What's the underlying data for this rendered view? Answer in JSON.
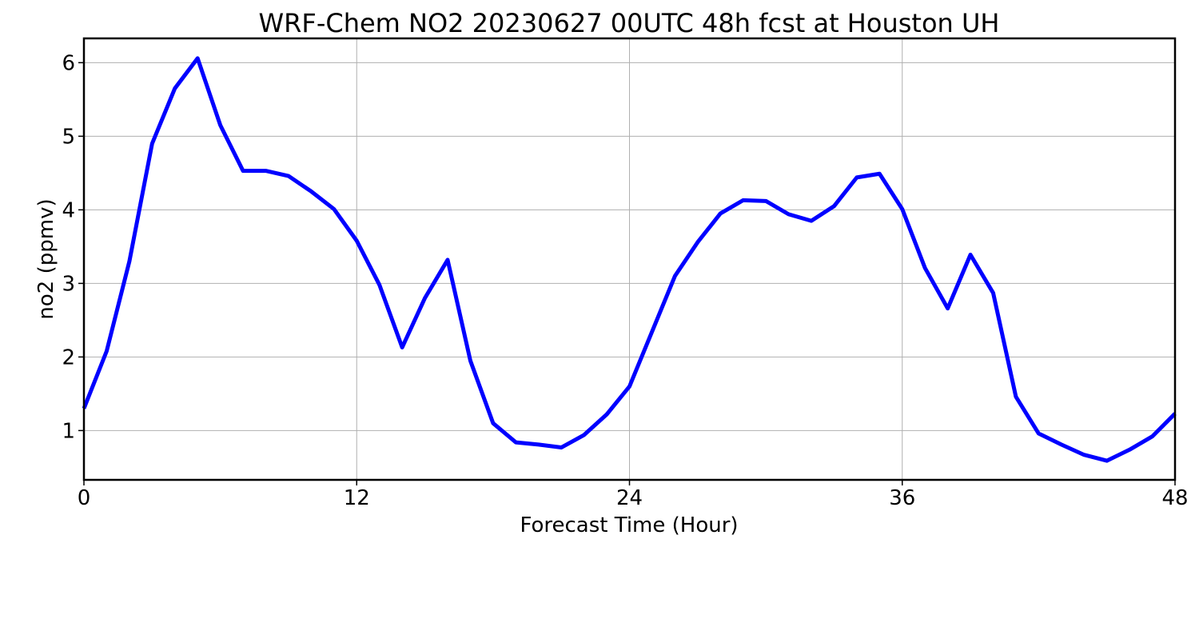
{
  "chart_data": {
    "type": "line",
    "title": "WRF-Chem NO2  20230627 00UTC 48h fcst at Houston UH",
    "xlabel": "Forecast Time (Hour)",
    "ylabel": "no2  (ppmv)",
    "xlim": [
      0,
      48
    ],
    "ylim": [
      0.33,
      6.33
    ],
    "xticks": [
      0,
      12,
      24,
      36,
      48
    ],
    "yticks": [
      1,
      2,
      3,
      4,
      5,
      6
    ],
    "grid": true,
    "series": [
      {
        "color": "#0000ff",
        "x": [
          0,
          1,
          2,
          3,
          4,
          5,
          6,
          7,
          8,
          9,
          10,
          11,
          12,
          13,
          14,
          15,
          16,
          17,
          18,
          19,
          20,
          21,
          22,
          23,
          24,
          25,
          26,
          27,
          28,
          29,
          30,
          31,
          32,
          33,
          34,
          35,
          36,
          37,
          38,
          39,
          40,
          41,
          42,
          43,
          44,
          45,
          46,
          47,
          48
        ],
        "values": [
          1.3,
          2.08,
          3.3,
          4.9,
          5.65,
          6.06,
          5.15,
          4.53,
          4.53,
          4.46,
          4.25,
          4.01,
          3.58,
          2.98,
          2.13,
          2.8,
          3.32,
          1.95,
          1.1,
          0.84,
          0.81,
          0.77,
          0.94,
          1.22,
          1.6,
          2.35,
          3.1,
          3.56,
          3.95,
          4.13,
          4.12,
          3.94,
          3.85,
          4.05,
          4.44,
          4.49,
          4.01,
          3.21,
          2.66,
          3.39,
          2.87,
          1.46,
          0.96,
          0.81,
          0.67,
          0.59,
          0.74,
          0.92,
          1.23
        ]
      }
    ]
  }
}
